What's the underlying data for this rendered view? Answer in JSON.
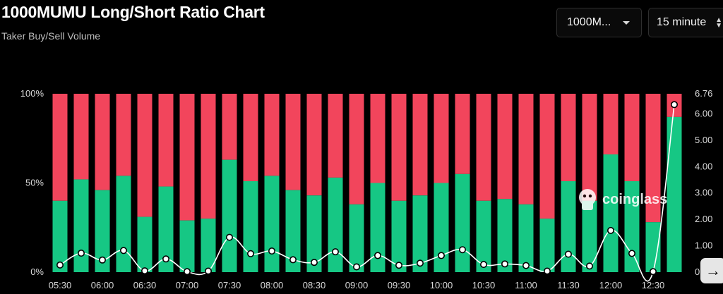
{
  "header": {
    "title": "1000MUMU Long/Short Ratio Chart",
    "subtitle": "Taker Buy/Sell Volume"
  },
  "controls": {
    "symbol_select": "1000M...",
    "interval_select": "15 minute"
  },
  "watermark": {
    "text": "coinglass"
  },
  "nav": {
    "next_icon": "arrow-right-icon"
  },
  "colors": {
    "buy": "#16c784",
    "sell": "#f2455c",
    "ratio_line": "#ffffff",
    "background": "#000000"
  },
  "chart_data": {
    "type": "bar",
    "stacked": true,
    "x_tick_labels": [
      "05:30",
      "06:00",
      "06:30",
      "07:00",
      "07:30",
      "08:00",
      "08:30",
      "09:00",
      "09:30",
      "10:00",
      "10:30",
      "11:00",
      "11:30",
      "12:00",
      "12:30"
    ],
    "left_axis": {
      "tick_labels": [
        "100%",
        "50%",
        "0%"
      ],
      "range": [
        0,
        100
      ]
    },
    "right_axis": {
      "tick_labels": [
        "6.76",
        "6.00",
        "5.00",
        "4.00",
        "3.00",
        "2.00",
        "1.00",
        "0"
      ],
      "range": [
        0,
        6.76
      ]
    },
    "series": [
      {
        "type": "bar",
        "values": [
          40,
          52,
          46,
          54,
          31,
          48,
          29,
          30,
          63,
          51,
          54,
          46,
          43,
          53,
          38,
          50,
          40,
          43,
          50,
          55,
          40,
          41,
          38,
          30,
          51,
          40,
          66,
          51,
          28,
          87
        ]
      },
      {
        "type": "bar",
        "values": [
          60,
          48,
          54,
          46,
          69,
          52,
          71,
          70,
          37,
          49,
          46,
          54,
          57,
          47,
          62,
          50,
          60,
          57,
          50,
          45,
          60,
          59,
          62,
          70,
          49,
          60,
          34,
          49,
          72,
          13
        ]
      },
      {
        "type": "line",
        "axis": "right",
        "values": [
          0.27,
          0.72,
          0.46,
          0.82,
          0.05,
          0.5,
          0.02,
          0.04,
          1.32,
          0.7,
          0.8,
          0.47,
          0.37,
          0.77,
          0.2,
          0.63,
          0.26,
          0.34,
          0.63,
          0.85,
          0.29,
          0.31,
          0.25,
          0.04,
          0.68,
          0.23,
          1.58,
          0.71,
          0.02,
          6.35
        ]
      }
    ],
    "legend": "none",
    "grid": false
  }
}
